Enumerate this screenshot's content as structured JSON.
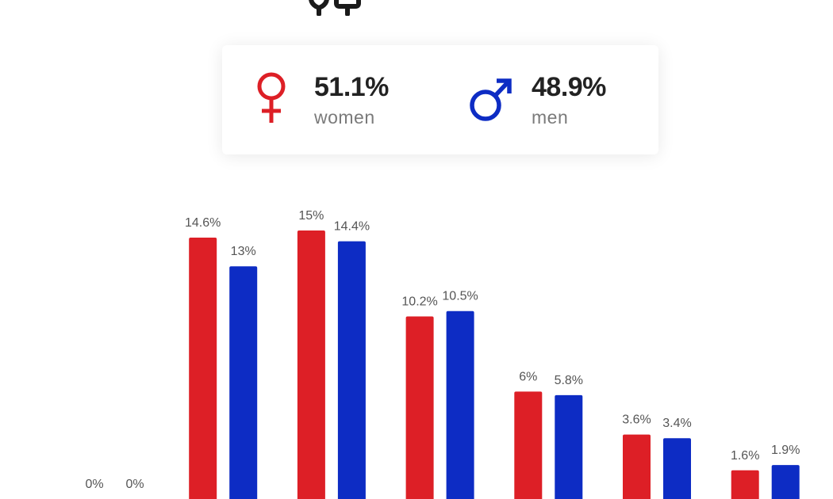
{
  "summary": {
    "women": {
      "percent": "51.1%",
      "label": "women",
      "icon": "female-symbol-icon",
      "color": "#dd1f26"
    },
    "men": {
      "percent": "48.9%",
      "label": "men",
      "icon": "male-symbol-icon",
      "color": "#0d2cc4"
    }
  },
  "top_icon": "people-icon",
  "chart_data": {
    "type": "bar",
    "categories": [
      "",
      "",
      "",
      "",
      "",
      "",
      ""
    ],
    "series": [
      {
        "name": "women",
        "color": "#dd1f26",
        "values": [
          0,
          14.6,
          15,
          10.2,
          6,
          3.6,
          1.6
        ],
        "labels": [
          "0%",
          "14.6%",
          "15%",
          "10.2%",
          "6%",
          "3.6%",
          "1.6%"
        ]
      },
      {
        "name": "men",
        "color": "#0d2cc4",
        "values": [
          0,
          13,
          14.4,
          10.5,
          5.8,
          3.4,
          1.9
        ],
        "labels": [
          "0%",
          "13%",
          "14.4%",
          "10.5%",
          "5.8%",
          "3.4%",
          "1.9%"
        ]
      }
    ]
  }
}
